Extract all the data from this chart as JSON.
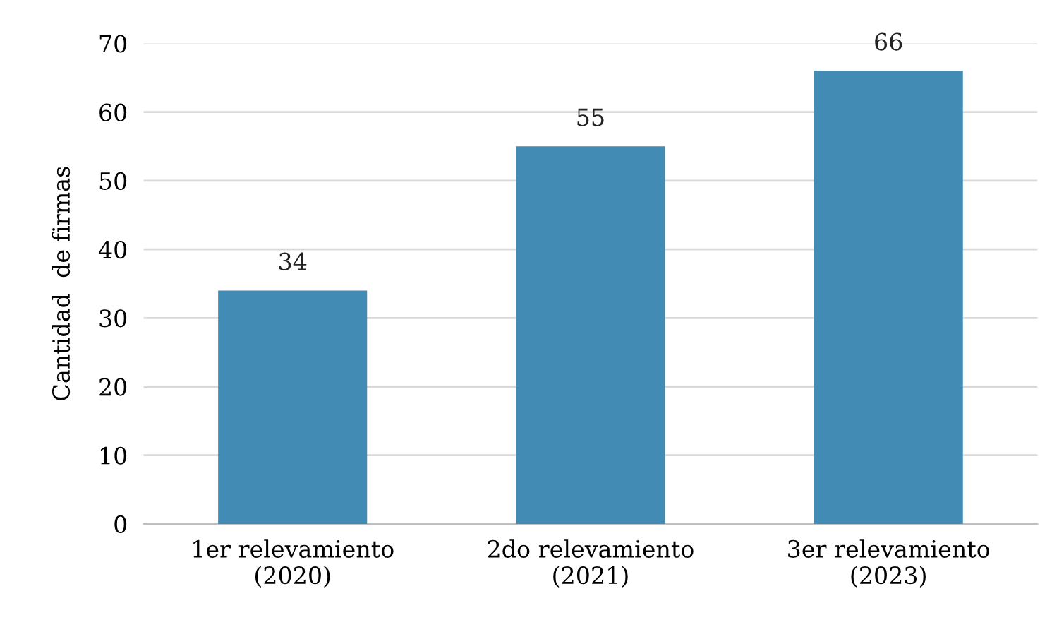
{
  "chart_data": {
    "type": "bar",
    "ylabel": "Cantidad  de firmas",
    "categories": [
      "1er relevamiento\n(2020)",
      "2do relevamiento\n(2021)",
      "3er relevamiento\n(2023)"
    ],
    "values": [
      34,
      55,
      66
    ],
    "color": "#428bb5",
    "ylim": [
      0,
      70
    ],
    "yticks": [
      0,
      10,
      20,
      30,
      40,
      50,
      60,
      70
    ],
    "grid": "y",
    "data_labels": true
  }
}
